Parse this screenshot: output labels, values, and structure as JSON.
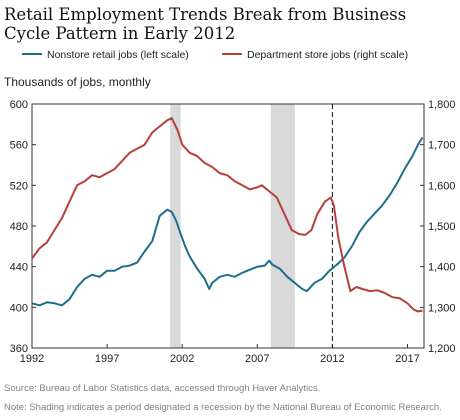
{
  "title": "Retail Employment Trends Break from Business Cycle Pattern in Early 2012",
  "source": "Source: Bureau of Labor Statistics data, accessed through Haver Analytics.",
  "note": "Note: Shading indicates a period designated a recession by the National Bureau of Economic Research.",
  "colors": {
    "left_series": "#1f6e8c",
    "right_series": "#b5413a",
    "recession": "#d9d9d9"
  },
  "chart_data": {
    "type": "line",
    "ylabel": "Thousands of jobs, monthly",
    "x_ticks": [
      "1992",
      "1997",
      "2002",
      "2007",
      "2012",
      "2017"
    ],
    "x_range": [
      1992,
      2018.1
    ],
    "y_left_ticks": [
      "600",
      "560",
      "520",
      "480",
      "440",
      "400",
      "360"
    ],
    "y_left_range": [
      360,
      600
    ],
    "y_right_ticks": [
      "1,800",
      "1,700",
      "1,600",
      "1,500",
      "1,400",
      "1,300",
      "1,200"
    ],
    "y_right_range": [
      1200,
      1800
    ],
    "recessions": [
      [
        2001.2,
        2001.9
      ],
      [
        2007.9,
        2009.5
      ]
    ],
    "vline": 2012.0,
    "series": [
      {
        "name": "Nonstore retail jobs (left scale)",
        "axis": "left",
        "points": [
          [
            1992.0,
            404
          ],
          [
            1992.5,
            402
          ],
          [
            1993.0,
            405
          ],
          [
            1993.5,
            404
          ],
          [
            1994.0,
            402
          ],
          [
            1994.5,
            408
          ],
          [
            1995.0,
            420
          ],
          [
            1995.5,
            428
          ],
          [
            1996.0,
            432
          ],
          [
            1996.5,
            430
          ],
          [
            1997.0,
            436
          ],
          [
            1997.5,
            436
          ],
          [
            1998.0,
            440
          ],
          [
            1998.5,
            441
          ],
          [
            1999.0,
            444
          ],
          [
            1999.5,
            455
          ],
          [
            2000.0,
            465
          ],
          [
            2000.5,
            490
          ],
          [
            2001.0,
            496
          ],
          [
            2001.3,
            494
          ],
          [
            2001.6,
            485
          ],
          [
            2001.9,
            472
          ],
          [
            2002.2,
            460
          ],
          [
            2002.5,
            450
          ],
          [
            2003.0,
            438
          ],
          [
            2003.5,
            428
          ],
          [
            2003.8,
            418
          ],
          [
            2004.0,
            424
          ],
          [
            2004.5,
            430
          ],
          [
            2005.0,
            432
          ],
          [
            2005.5,
            430
          ],
          [
            2006.0,
            434
          ],
          [
            2006.5,
            437
          ],
          [
            2007.0,
            440
          ],
          [
            2007.5,
            441
          ],
          [
            2007.8,
            446
          ],
          [
            2008.0,
            442
          ],
          [
            2008.5,
            438
          ],
          [
            2009.0,
            430
          ],
          [
            2009.5,
            424
          ],
          [
            2010.0,
            418
          ],
          [
            2010.3,
            416
          ],
          [
            2010.8,
            424
          ],
          [
            2011.3,
            428
          ],
          [
            2011.8,
            436
          ],
          [
            2012.3,
            442
          ],
          [
            2012.8,
            449
          ],
          [
            2013.3,
            460
          ],
          [
            2013.8,
            474
          ],
          [
            2014.3,
            484
          ],
          [
            2014.8,
            492
          ],
          [
            2015.3,
            500
          ],
          [
            2015.8,
            510
          ],
          [
            2016.3,
            522
          ],
          [
            2016.8,
            536
          ],
          [
            2017.3,
            548
          ],
          [
            2017.7,
            560
          ],
          [
            2018.0,
            567
          ]
        ]
      },
      {
        "name": "Department store jobs (right scale)",
        "axis": "right",
        "points": [
          [
            1992.0,
            1420
          ],
          [
            1992.5,
            1445
          ],
          [
            1993.0,
            1460
          ],
          [
            1993.5,
            1490
          ],
          [
            1994.0,
            1520
          ],
          [
            1994.5,
            1560
          ],
          [
            1995.0,
            1600
          ],
          [
            1995.5,
            1610
          ],
          [
            1996.0,
            1625
          ],
          [
            1996.5,
            1620
          ],
          [
            1997.0,
            1630
          ],
          [
            1997.5,
            1640
          ],
          [
            1998.0,
            1660
          ],
          [
            1998.5,
            1680
          ],
          [
            1999.0,
            1690
          ],
          [
            1999.5,
            1700
          ],
          [
            2000.0,
            1730
          ],
          [
            2000.5,
            1745
          ],
          [
            2001.0,
            1760
          ],
          [
            2001.3,
            1765
          ],
          [
            2001.7,
            1735
          ],
          [
            2002.0,
            1700
          ],
          [
            2002.5,
            1680
          ],
          [
            2003.0,
            1672
          ],
          [
            2003.5,
            1655
          ],
          [
            2004.0,
            1645
          ],
          [
            2004.5,
            1630
          ],
          [
            2005.0,
            1625
          ],
          [
            2005.5,
            1610
          ],
          [
            2006.0,
            1600
          ],
          [
            2006.5,
            1590
          ],
          [
            2007.0,
            1595
          ],
          [
            2007.3,
            1600
          ],
          [
            2007.8,
            1585
          ],
          [
            2008.3,
            1570
          ],
          [
            2008.8,
            1530
          ],
          [
            2009.3,
            1490
          ],
          [
            2009.8,
            1480
          ],
          [
            2010.2,
            1478
          ],
          [
            2010.6,
            1490
          ],
          [
            2011.0,
            1530
          ],
          [
            2011.5,
            1560
          ],
          [
            2011.9,
            1570
          ],
          [
            2012.1,
            1550
          ],
          [
            2012.4,
            1470
          ],
          [
            2012.8,
            1400
          ],
          [
            2013.2,
            1340
          ],
          [
            2013.6,
            1350
          ],
          [
            2014.0,
            1345
          ],
          [
            2014.5,
            1340
          ],
          [
            2015.0,
            1342
          ],
          [
            2015.5,
            1335
          ],
          [
            2016.0,
            1325
          ],
          [
            2016.5,
            1322
          ],
          [
            2017.0,
            1310
          ],
          [
            2017.4,
            1295
          ],
          [
            2017.7,
            1290
          ],
          [
            2018.0,
            1292
          ]
        ]
      }
    ]
  }
}
